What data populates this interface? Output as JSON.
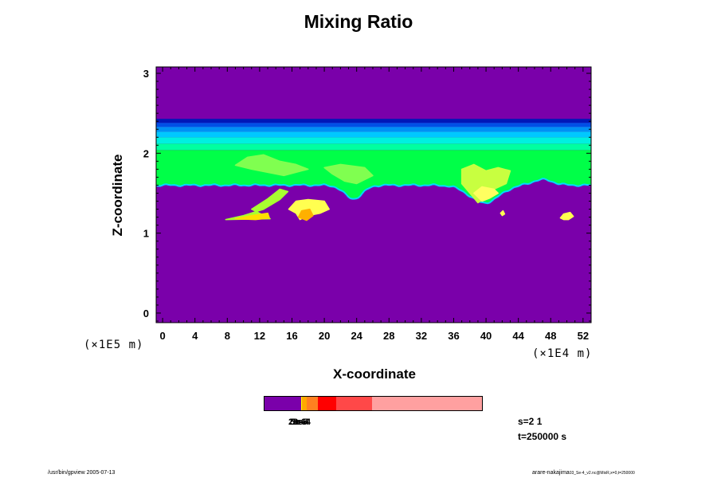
{
  "chart_data": {
    "type": "heatmap",
    "title": "Mixing Ratio",
    "xlabel": "X-coordinate",
    "ylabel": "Z-coordinate",
    "x_unit": "(×1E4 m)",
    "y_unit": "(×1E5 m)",
    "xlim": [
      -0.8,
      53
    ],
    "ylim": [
      -0.12,
      3.08
    ],
    "x_ticks": [
      0,
      4,
      8,
      12,
      16,
      20,
      24,
      28,
      32,
      36,
      40,
      44,
      48,
      52
    ],
    "y_ticks": [
      0,
      1,
      2,
      3
    ],
    "background_value": "lowest level (violet)",
    "bands": [
      {
        "z0": 2.38,
        "z1": 2.43,
        "color": "#0018b8"
      },
      {
        "z0": 2.33,
        "z1": 2.38,
        "color": "#0050e6"
      },
      {
        "z0": 2.27,
        "z1": 2.33,
        "color": "#0090f5"
      },
      {
        "z0": 2.2,
        "z1": 2.27,
        "color": "#00c8ff"
      },
      {
        "z0": 2.12,
        "z1": 2.2,
        "color": "#00f0e0"
      },
      {
        "z0": 2.04,
        "z1": 2.12,
        "color": "#00ffa0"
      },
      {
        "z0": 1.6,
        "z1": 2.04,
        "color": "#00ff48"
      }
    ],
    "features": [
      {
        "name": "plume-left",
        "points": [
          [
            7.8,
            1.17
          ],
          [
            10,
            1.22
          ],
          [
            12.5,
            1.3
          ],
          [
            14.5,
            1.42
          ],
          [
            15.5,
            1.52
          ],
          [
            14.5,
            1.55
          ],
          [
            13,
            1.43
          ],
          [
            11,
            1.3
          ],
          [
            13.3,
            1.18
          ]
        ],
        "color": "#a8ff30"
      },
      {
        "name": "plume-left-core",
        "points": [
          [
            9,
            1.18
          ],
          [
            11,
            1.22
          ],
          [
            13,
            1.25
          ],
          [
            13.2,
            1.19
          ],
          [
            11.5,
            1.17
          ]
        ],
        "color": "#ffe000"
      },
      {
        "name": "blob-mid",
        "points": [
          [
            15.6,
            1.3
          ],
          [
            16.5,
            1.4
          ],
          [
            18,
            1.42
          ],
          [
            20,
            1.4
          ],
          [
            20.6,
            1.3
          ],
          [
            19.5,
            1.25
          ],
          [
            18,
            1.22
          ],
          [
            17,
            1.17
          ],
          [
            16.5,
            1.25
          ]
        ],
        "color": "#ffff50"
      },
      {
        "name": "blob-mid-core",
        "points": [
          [
            16.8,
            1.2
          ],
          [
            17.2,
            1.28
          ],
          [
            18.2,
            1.3
          ],
          [
            18.6,
            1.22
          ],
          [
            17.8,
            1.16
          ]
        ],
        "color": "#ffb000"
      },
      {
        "name": "cloud-upper-left",
        "points": [
          [
            9,
            1.85
          ],
          [
            10.5,
            1.95
          ],
          [
            12.5,
            1.98
          ],
          [
            14.5,
            1.9
          ],
          [
            16.5,
            1.86
          ],
          [
            18,
            1.8
          ],
          [
            15,
            1.72
          ],
          [
            13,
            1.76
          ],
          [
            11,
            1.8
          ]
        ],
        "color": "#80ff50"
      },
      {
        "name": "cloud-upper-mid",
        "points": [
          [
            20,
            1.82
          ],
          [
            22,
            1.86
          ],
          [
            25,
            1.82
          ],
          [
            26,
            1.72
          ],
          [
            24,
            1.62
          ],
          [
            22.5,
            1.65
          ],
          [
            21,
            1.74
          ]
        ],
        "color": "#80ff50"
      },
      {
        "name": "cloud-right",
        "points": [
          [
            37,
            1.8
          ],
          [
            38.5,
            1.86
          ],
          [
            40,
            1.78
          ],
          [
            41.5,
            1.82
          ],
          [
            43,
            1.78
          ],
          [
            42.5,
            1.62
          ],
          [
            41,
            1.55
          ],
          [
            40,
            1.45
          ],
          [
            39,
            1.38
          ],
          [
            38,
            1.5
          ],
          [
            37,
            1.62
          ]
        ],
        "color": "#c8ff40"
      },
      {
        "name": "cloud-right-core",
        "points": [
          [
            38.5,
            1.5
          ],
          [
            39.5,
            1.58
          ],
          [
            41,
            1.55
          ],
          [
            41.5,
            1.5
          ],
          [
            40.5,
            1.44
          ],
          [
            39.5,
            1.4
          ]
        ],
        "color": "#ffff60"
      },
      {
        "name": "blob-far-right",
        "points": [
          [
            49.2,
            1.19
          ],
          [
            49.6,
            1.24
          ],
          [
            50.4,
            1.26
          ],
          [
            50.8,
            1.21
          ],
          [
            50.2,
            1.17
          ],
          [
            49.6,
            1.17
          ]
        ],
        "color": "#ffff50"
      },
      {
        "name": "dot-right",
        "points": [
          [
            41.8,
            1.25
          ],
          [
            42.1,
            1.28
          ],
          [
            42.3,
            1.24
          ],
          [
            42.0,
            1.22
          ]
        ],
        "color": "#ffff50"
      }
    ],
    "dips": [
      {
        "x": 23.6,
        "width": 1.6,
        "depth": 0.17
      },
      {
        "x": 39.8,
        "width": 2.6,
        "depth": 0.22
      },
      {
        "x": 47.0,
        "width": 1.8,
        "depth": -0.07
      }
    ],
    "colorbar": {
      "segments": [
        {
          "color": "#7a00aa",
          "frac": 0.168
        },
        {
          "color": "#ffff00",
          "frac": 0.006
        },
        {
          "color": "#ffa800",
          "frac": 0.02
        },
        {
          "color": "#ff8020",
          "frac": 0.05
        },
        {
          "color": "#ff0000",
          "frac": 0.085
        },
        {
          "color": "#ff4848",
          "frac": 0.165
        },
        {
          "color": "#ffa0a0",
          "frac": 0.506
        }
      ],
      "labels": [
        "2e-6",
        "5e-5",
        "1e-4",
        "3e-4"
      ]
    },
    "colors": {
      "background": "#7a00aa"
    }
  },
  "info": {
    "s_label": "s=2 1",
    "t_label": "t=250000 s"
  },
  "footer": {
    "left": "/usr/bin/gpview 2005-07-13",
    "right_main": "arare-nakajima",
    "right_small": "03_Se-4_v2.nc@MixR,x=0,t=250000"
  }
}
